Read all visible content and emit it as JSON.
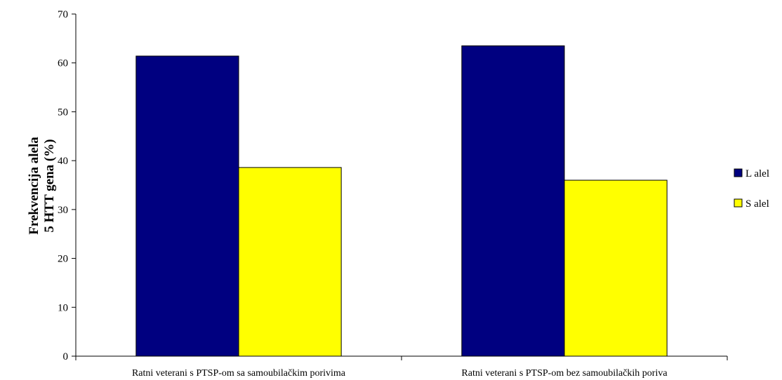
{
  "chart_data": {
    "type": "bar",
    "categories": [
      "Ratni veterani s PTSP-om sa samoubilačkim porivima",
      "Ratni veterani s PTSP-om bez samoubilačkih poriva"
    ],
    "series": [
      {
        "name": "L alel",
        "color": "#000080",
        "values": [
          61.4,
          63.5
        ]
      },
      {
        "name": "S alel",
        "color": "#FFFF00",
        "values": [
          38.6,
          36.0
        ]
      }
    ],
    "ylabel_lines": [
      "Frekvencija alela",
      "5 HTT gena (%)"
    ],
    "ylim": [
      0,
      70
    ],
    "yticks": [
      0,
      10,
      20,
      30,
      40,
      50,
      60,
      70
    ],
    "grid": false,
    "legend_position": "right"
  }
}
